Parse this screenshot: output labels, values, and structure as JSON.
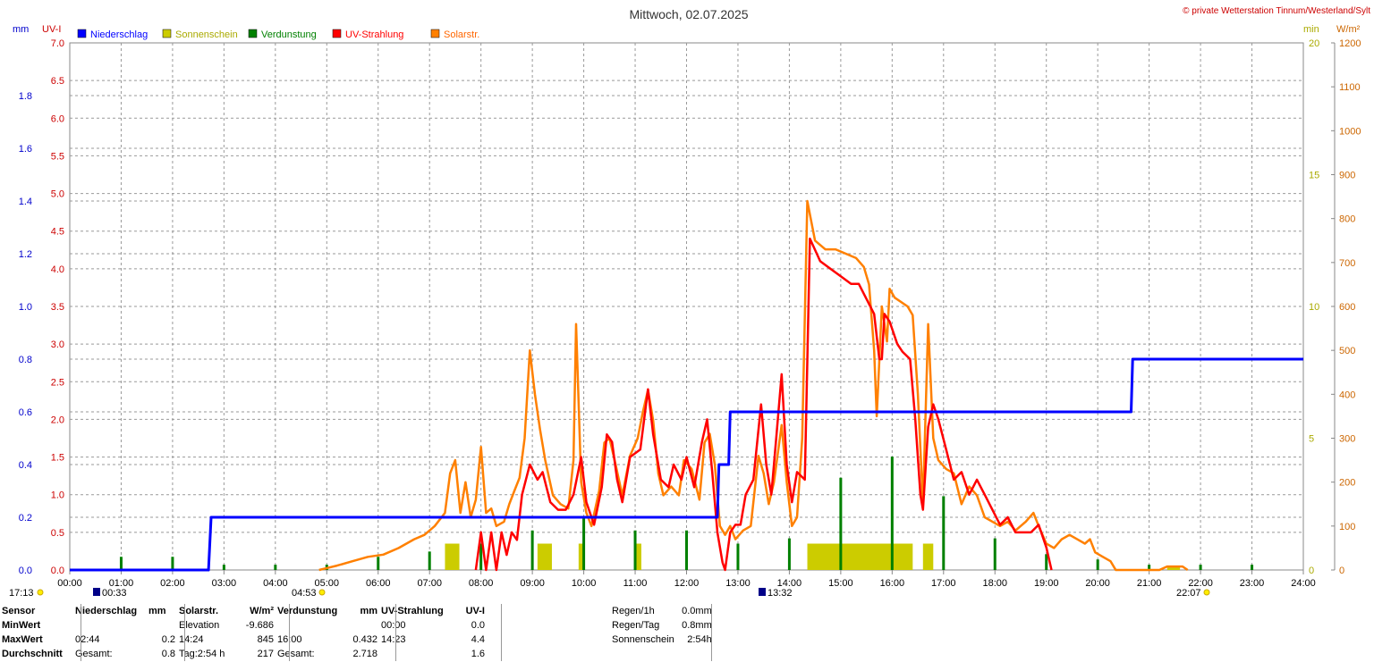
{
  "header": {
    "title": "Mittwoch, 02.07.2025",
    "copyright": "© private Wetterstation Tinnum/Westerland/Sylt",
    "left_unit_mm": "mm",
    "left_unit_uv": "UV-I",
    "right_unit_min": "min",
    "right_unit_wm2": "W/m²"
  },
  "legend": [
    {
      "label": "Niederschlag",
      "color": "#0000ff"
    },
    {
      "label": "Sonnenschein",
      "color": "#cccc00"
    },
    {
      "label": "Verdunstung",
      "color": "#008000"
    },
    {
      "label": "UV-Strahlung",
      "color": "#ff0000"
    },
    {
      "label": "Solarstr.",
      "color": "#ff8000"
    }
  ],
  "markers": {
    "sunset_prev": "17:13",
    "moonset": "00:33",
    "sunrise": "04:53",
    "moonrise": "13:32",
    "sunset": "22:07"
  },
  "chart_data": {
    "type": "line",
    "title": "Mittwoch, 02.07.2025",
    "x_ticks": [
      "00:00",
      "01:00",
      "02:00",
      "03:00",
      "04:00",
      "05:00",
      "06:00",
      "07:00",
      "08:00",
      "09:00",
      "10:00",
      "11:00",
      "12:00",
      "13:00",
      "14:00",
      "15:00",
      "16:00",
      "17:00",
      "18:00",
      "19:00",
      "20:00",
      "21:00",
      "22:00",
      "23:00",
      "24:00"
    ],
    "xlim_hours": [
      0,
      24
    ],
    "grid": true,
    "legend_position": "top-left",
    "axes": {
      "mm": {
        "ticks": [
          "0.0",
          "0.2",
          "0.4",
          "0.6",
          "0.8",
          "1.0",
          "1.2",
          "1.4",
          "1.6",
          "1.8"
        ],
        "range": [
          0,
          2.0
        ],
        "color": "#0000ff"
      },
      "uv": {
        "ticks": [
          "0.0",
          "0.5",
          "1.0",
          "1.5",
          "2.0",
          "2.5",
          "3.0",
          "3.5",
          "4.0",
          "4.5",
          "5.0",
          "5.5",
          "6.0",
          "6.5",
          "7.0"
        ],
        "range": [
          0,
          7.0
        ],
        "color": "#ff0000"
      },
      "min": {
        "ticks": [
          "0",
          "5",
          "10",
          "15",
          "20"
        ],
        "range": [
          0,
          20
        ],
        "color": "#cccc00"
      },
      "wm2": {
        "ticks": [
          "0",
          "100",
          "200",
          "300",
          "400",
          "500",
          "600",
          "700",
          "800",
          "900",
          "1000",
          "1100",
          "1200"
        ],
        "range": [
          0,
          1200
        ],
        "color": "#ff8000"
      }
    },
    "series": [
      {
        "name": "Niederschlag",
        "axis": "mm",
        "color": "#0000ff",
        "step": true,
        "points": [
          [
            0,
            0
          ],
          [
            2.7,
            0
          ],
          [
            2.75,
            0.2
          ],
          [
            12.6,
            0.2
          ],
          [
            12.63,
            0.4
          ],
          [
            12.82,
            0.4
          ],
          [
            12.85,
            0.6
          ],
          [
            20.65,
            0.6
          ],
          [
            20.68,
            0.8
          ],
          [
            24,
            0.8
          ]
        ]
      },
      {
        "name": "UV-Strahlung",
        "axis": "uv",
        "color": "#ff0000",
        "points": [
          [
            7.9,
            0
          ],
          [
            8.0,
            0.5
          ],
          [
            8.1,
            0
          ],
          [
            8.2,
            0.5
          ],
          [
            8.3,
            0
          ],
          [
            8.4,
            0.5
          ],
          [
            8.5,
            0.2
          ],
          [
            8.6,
            0.5
          ],
          [
            8.7,
            0.4
          ],
          [
            8.8,
            1.0
          ],
          [
            8.95,
            1.4
          ],
          [
            9.1,
            1.2
          ],
          [
            9.2,
            1.3
          ],
          [
            9.35,
            0.9
          ],
          [
            9.5,
            0.8
          ],
          [
            9.65,
            0.8
          ],
          [
            9.8,
            1.0
          ],
          [
            9.95,
            1.5
          ],
          [
            10.05,
            0.9
          ],
          [
            10.2,
            0.6
          ],
          [
            10.35,
            1.1
          ],
          [
            10.45,
            1.8
          ],
          [
            10.55,
            1.7
          ],
          [
            10.65,
            1.2
          ],
          [
            10.75,
            0.9
          ],
          [
            10.9,
            1.5
          ],
          [
            11.1,
            1.6
          ],
          [
            11.25,
            2.4
          ],
          [
            11.35,
            1.8
          ],
          [
            11.5,
            1.2
          ],
          [
            11.65,
            1.1
          ],
          [
            11.75,
            1.4
          ],
          [
            11.9,
            1.2
          ],
          [
            12.0,
            1.5
          ],
          [
            12.15,
            1.1
          ],
          [
            12.3,
            1.7
          ],
          [
            12.4,
            2.0
          ],
          [
            12.5,
            1.3
          ],
          [
            12.6,
            0.5
          ],
          [
            12.7,
            0.1
          ],
          [
            12.75,
            0
          ],
          [
            12.85,
            0.5
          ],
          [
            12.95,
            0.6
          ],
          [
            13.05,
            0.6
          ],
          [
            13.15,
            1.0
          ],
          [
            13.3,
            1.2
          ],
          [
            13.45,
            2.2
          ],
          [
            13.55,
            1.4
          ],
          [
            13.65,
            1.0
          ],
          [
            13.75,
            1.8
          ],
          [
            13.85,
            2.6
          ],
          [
            13.95,
            1.4
          ],
          [
            14.05,
            0.9
          ],
          [
            14.15,
            1.3
          ],
          [
            14.3,
            1.2
          ],
          [
            14.4,
            4.4
          ],
          [
            14.6,
            4.1
          ],
          [
            14.8,
            4.0
          ],
          [
            15.0,
            3.9
          ],
          [
            15.2,
            3.8
          ],
          [
            15.35,
            3.8
          ],
          [
            15.5,
            3.6
          ],
          [
            15.65,
            3.4
          ],
          [
            15.75,
            2.8
          ],
          [
            15.8,
            2.8
          ],
          [
            15.85,
            3.4
          ],
          [
            15.95,
            3.3
          ],
          [
            16.1,
            3.0
          ],
          [
            16.2,
            2.9
          ],
          [
            16.35,
            2.8
          ],
          [
            16.45,
            2.0
          ],
          [
            16.55,
            1.0
          ],
          [
            16.6,
            0.8
          ],
          [
            16.7,
            1.9
          ],
          [
            16.8,
            2.2
          ],
          [
            16.9,
            2.0
          ],
          [
            17.05,
            1.6
          ],
          [
            17.2,
            1.2
          ],
          [
            17.35,
            1.3
          ],
          [
            17.5,
            1.0
          ],
          [
            17.65,
            1.2
          ],
          [
            17.8,
            1.0
          ],
          [
            17.95,
            0.8
          ],
          [
            18.1,
            0.6
          ],
          [
            18.25,
            0.7
          ],
          [
            18.4,
            0.5
          ],
          [
            18.55,
            0.5
          ],
          [
            18.7,
            0.5
          ],
          [
            18.85,
            0.6
          ],
          [
            19.0,
            0.3
          ],
          [
            19.1,
            0
          ]
        ]
      },
      {
        "name": "Solarstr.",
        "axis": "wm2",
        "color": "#ff8000",
        "points": [
          [
            4.85,
            0
          ],
          [
            5.2,
            10
          ],
          [
            5.5,
            20
          ],
          [
            5.8,
            30
          ],
          [
            6.1,
            35
          ],
          [
            6.4,
            50
          ],
          [
            6.7,
            70
          ],
          [
            6.9,
            80
          ],
          [
            7.1,
            100
          ],
          [
            7.3,
            130
          ],
          [
            7.4,
            220
          ],
          [
            7.5,
            250
          ],
          [
            7.6,
            130
          ],
          [
            7.7,
            200
          ],
          [
            7.8,
            120
          ],
          [
            7.9,
            160
          ],
          [
            8.0,
            280
          ],
          [
            8.1,
            130
          ],
          [
            8.2,
            140
          ],
          [
            8.3,
            100
          ],
          [
            8.45,
            110
          ],
          [
            8.55,
            150
          ],
          [
            8.65,
            180
          ],
          [
            8.75,
            210
          ],
          [
            8.85,
            300
          ],
          [
            8.95,
            500
          ],
          [
            9.05,
            400
          ],
          [
            9.15,
            320
          ],
          [
            9.25,
            250
          ],
          [
            9.4,
            170
          ],
          [
            9.55,
            150
          ],
          [
            9.7,
            140
          ],
          [
            9.8,
            250
          ],
          [
            9.85,
            560
          ],
          [
            9.95,
            200
          ],
          [
            10.05,
            130
          ],
          [
            10.15,
            100
          ],
          [
            10.3,
            180
          ],
          [
            10.4,
            290
          ],
          [
            10.5,
            300
          ],
          [
            10.6,
            250
          ],
          [
            10.75,
            170
          ],
          [
            10.9,
            260
          ],
          [
            11.05,
            300
          ],
          [
            11.15,
            360
          ],
          [
            11.25,
            410
          ],
          [
            11.35,
            340
          ],
          [
            11.45,
            220
          ],
          [
            11.55,
            170
          ],
          [
            11.7,
            190
          ],
          [
            11.85,
            170
          ],
          [
            11.95,
            250
          ],
          [
            12.1,
            230
          ],
          [
            12.25,
            160
          ],
          [
            12.35,
            290
          ],
          [
            12.45,
            310
          ],
          [
            12.55,
            240
          ],
          [
            12.65,
            100
          ],
          [
            12.75,
            80
          ],
          [
            12.85,
            100
          ],
          [
            12.95,
            70
          ],
          [
            13.1,
            90
          ],
          [
            13.25,
            100
          ],
          [
            13.4,
            260
          ],
          [
            13.5,
            220
          ],
          [
            13.6,
            150
          ],
          [
            13.7,
            200
          ],
          [
            13.85,
            330
          ],
          [
            13.95,
            200
          ],
          [
            14.05,
            100
          ],
          [
            14.15,
            120
          ],
          [
            14.25,
            300
          ],
          [
            14.35,
            840
          ],
          [
            14.5,
            750
          ],
          [
            14.7,
            730
          ],
          [
            14.9,
            730
          ],
          [
            15.1,
            720
          ],
          [
            15.3,
            710
          ],
          [
            15.45,
            690
          ],
          [
            15.55,
            650
          ],
          [
            15.65,
            500
          ],
          [
            15.7,
            350
          ],
          [
            15.8,
            600
          ],
          [
            15.9,
            520
          ],
          [
            15.95,
            640
          ],
          [
            16.05,
            620
          ],
          [
            16.3,
            600
          ],
          [
            16.4,
            580
          ],
          [
            16.5,
            400
          ],
          [
            16.6,
            150
          ],
          [
            16.7,
            560
          ],
          [
            16.8,
            300
          ],
          [
            16.9,
            250
          ],
          [
            17.05,
            230
          ],
          [
            17.2,
            220
          ],
          [
            17.35,
            150
          ],
          [
            17.5,
            190
          ],
          [
            17.65,
            170
          ],
          [
            17.8,
            120
          ],
          [
            17.95,
            110
          ],
          [
            18.1,
            100
          ],
          [
            18.25,
            110
          ],
          [
            18.4,
            90
          ],
          [
            18.6,
            110
          ],
          [
            18.75,
            130
          ],
          [
            18.85,
            100
          ],
          [
            19.0,
            60
          ],
          [
            19.15,
            50
          ],
          [
            19.3,
            70
          ],
          [
            19.45,
            80
          ],
          [
            19.6,
            70
          ],
          [
            19.75,
            60
          ],
          [
            19.85,
            70
          ],
          [
            19.95,
            40
          ],
          [
            20.1,
            30
          ],
          [
            20.25,
            20
          ],
          [
            20.35,
            0
          ],
          [
            21.2,
            0
          ],
          [
            21.35,
            8
          ],
          [
            21.65,
            8
          ],
          [
            21.75,
            0
          ]
        ]
      },
      {
        "name": "Sonnenschein",
        "axis": "min",
        "color": "#cccc00",
        "type": "bar",
        "intervals": [
          [
            7.3,
            7.58,
            1
          ],
          [
            9.1,
            9.38,
            1
          ],
          [
            9.9,
            10.02,
            1
          ],
          [
            11.0,
            11.12,
            1
          ],
          [
            14.35,
            16.4,
            1
          ],
          [
            16.6,
            16.8,
            1
          ],
          [
            21.35,
            21.6,
            0.1
          ]
        ]
      },
      {
        "name": "Verdunstung",
        "axis": "mm",
        "color": "#008000",
        "type": "bar",
        "spikes": [
          [
            1.0,
            0.05
          ],
          [
            2.0,
            0.05
          ],
          [
            3.0,
            0.02
          ],
          [
            4.0,
            0.02
          ],
          [
            5.0,
            0.02
          ],
          [
            6.0,
            0.05
          ],
          [
            7.0,
            0.07
          ],
          [
            8.0,
            0.1
          ],
          [
            9.0,
            0.15
          ],
          [
            10.0,
            0.2
          ],
          [
            11.0,
            0.15
          ],
          [
            12.0,
            0.15
          ],
          [
            13.0,
            0.1
          ],
          [
            14.0,
            0.12
          ],
          [
            15.0,
            0.35
          ],
          [
            16.0,
            0.43
          ],
          [
            17.0,
            0.28
          ],
          [
            18.0,
            0.12
          ],
          [
            19.0,
            0.06
          ],
          [
            20.0,
            0.04
          ],
          [
            21.0,
            0.02
          ],
          [
            22.0,
            0.02
          ],
          [
            23.0,
            0.02
          ]
        ]
      }
    ]
  },
  "table": {
    "headers": [
      "Sensor",
      "Niederschlag",
      "mm",
      "Solarstr.",
      "W/m²",
      "Verdunstung",
      "mm",
      "UV-Strahlung",
      "UV-I"
    ],
    "rows": [
      {
        "label": "MinWert",
        "c1": "",
        "c2": "",
        "c3": "Elevation",
        "c4": "-9.686",
        "c5": "",
        "c6": "",
        "c7": "00:00",
        "c8": "0.0"
      },
      {
        "label": "MaxWert",
        "c1": "02:44",
        "c2": "0.2",
        "c3": "14:24",
        "c4": "845",
        "c5": "16:00",
        "c6": "0.432",
        "c7": "14:23",
        "c8": "4.4"
      },
      {
        "label": "Durchschnitt",
        "c1": "Gesamt:",
        "c2": "0.8",
        "c3": "Tag:2:54 h",
        "c4": "217",
        "c5": "Gesamt:",
        "c6": "2.718",
        "c7": "",
        "c8": "1.6"
      }
    ],
    "right": [
      {
        "label": "Regen/1h",
        "value": "0.0mm"
      },
      {
        "label": "Regen/Tag",
        "value": "0.8mm"
      },
      {
        "label": "Sonnenschein",
        "value": "2:54h"
      }
    ]
  }
}
